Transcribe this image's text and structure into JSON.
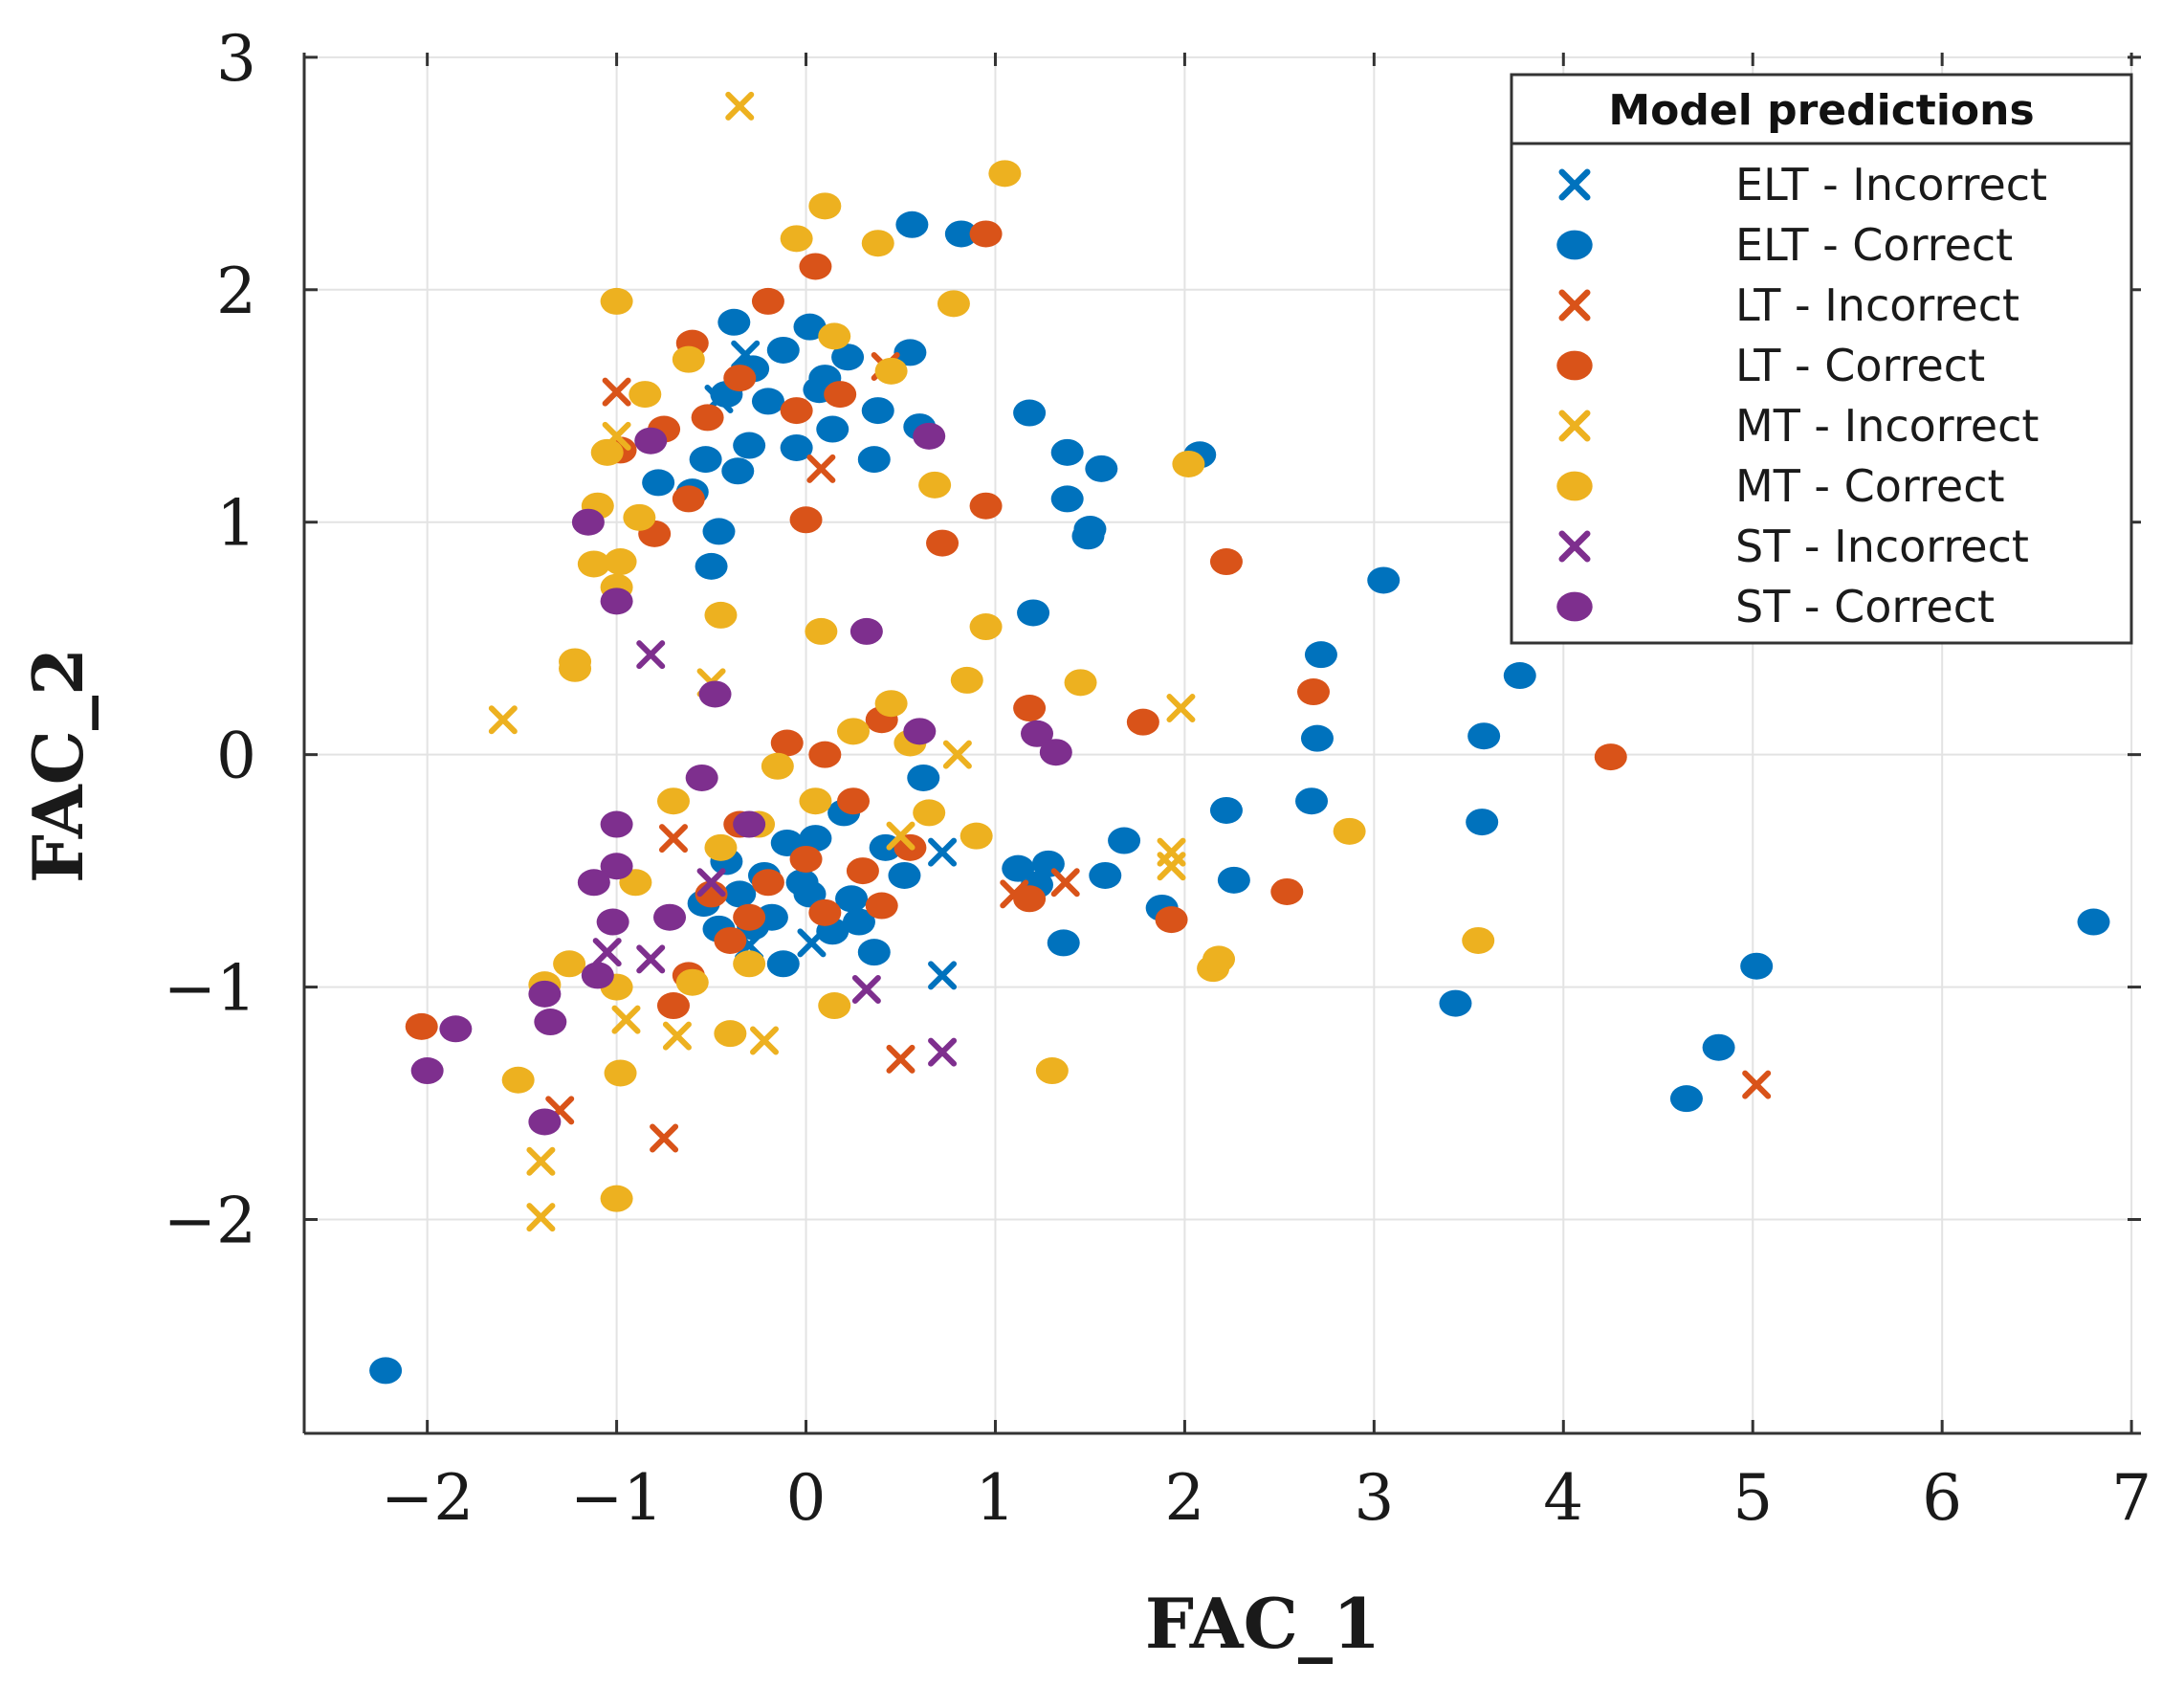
{
  "chart_data": {
    "type": "scatter",
    "xlabel": "FAC_1",
    "ylabel": "FAC_2",
    "xlim": [
      -2.65,
      7.05
    ],
    "ylim": [
      -2.92,
      3.02
    ],
    "xticks": [
      -2,
      -1,
      0,
      1,
      2,
      3,
      4,
      5,
      6,
      7
    ],
    "yticks": [
      -2,
      -1,
      0,
      1,
      2,
      3
    ],
    "xtick_labels": [
      "−2",
      "−1",
      "0",
      "1",
      "2",
      "3",
      "4",
      "5",
      "6",
      "7"
    ],
    "ytick_labels": [
      "−2",
      "−1",
      "0",
      "1",
      "2",
      "3"
    ],
    "grid": true,
    "legend": {
      "title": "Model predictions",
      "position": "top-right"
    },
    "series": [
      {
        "name": "ELT - Incorrect",
        "marker": "x",
        "color": "#0072BD",
        "points": [
          [
            -0.32,
            1.72
          ],
          [
            -0.46,
            1.53
          ],
          [
            0.03,
            -0.81
          ],
          [
            0.72,
            -0.42
          ],
          [
            0.72,
            -0.95
          ],
          [
            -0.3,
            -0.82
          ]
        ]
      },
      {
        "name": "ELT - Correct",
        "marker": "o",
        "color": "#0072BD",
        "points": [
          [
            0.56,
            2.28
          ],
          [
            0.82,
            2.24
          ],
          [
            -0.38,
            1.86
          ],
          [
            0.02,
            1.84
          ],
          [
            -0.12,
            1.74
          ],
          [
            0.22,
            1.71
          ],
          [
            0.55,
            1.73
          ],
          [
            -0.28,
            1.66
          ],
          [
            0.1,
            1.62
          ],
          [
            -0.42,
            1.55
          ],
          [
            -0.2,
            1.52
          ],
          [
            0.38,
            1.48
          ],
          [
            -0.53,
            1.27
          ],
          [
            -0.36,
            1.22
          ],
          [
            -0.6,
            1.13
          ],
          [
            -0.78,
            1.17
          ],
          [
            -0.46,
            0.96
          ],
          [
            -0.5,
            0.81
          ],
          [
            0.14,
            1.4
          ],
          [
            0.6,
            1.41
          ],
          [
            -0.05,
            1.32
          ],
          [
            0.36,
            1.27
          ],
          [
            0.07,
            1.57
          ],
          [
            -0.3,
            1.33
          ],
          [
            1.18,
            1.47
          ],
          [
            1.38,
            1.3
          ],
          [
            1.56,
            1.23
          ],
          [
            1.38,
            1.1
          ],
          [
            1.5,
            0.97
          ],
          [
            1.49,
            0.94
          ],
          [
            2.08,
            1.29
          ],
          [
            1.2,
            0.61
          ],
          [
            3.05,
            0.75
          ],
          [
            2.72,
            0.43
          ],
          [
            3.77,
            0.34
          ],
          [
            2.7,
            0.07
          ],
          [
            3.58,
            0.08
          ],
          [
            0.62,
            -0.1
          ],
          [
            2.22,
            -0.24
          ],
          [
            2.67,
            -0.2
          ],
          [
            1.68,
            -0.37
          ],
          [
            3.57,
            -0.29
          ],
          [
            1.12,
            -0.49
          ],
          [
            1.28,
            -0.47
          ],
          [
            1.58,
            -0.52
          ],
          [
            1.22,
            -0.56
          ],
          [
            2.26,
            -0.54
          ],
          [
            1.88,
            -0.66
          ],
          [
            1.36,
            -0.81
          ],
          [
            0.52,
            -0.52
          ],
          [
            0.2,
            -0.25
          ],
          [
            0.42,
            -0.4
          ],
          [
            -0.1,
            -0.38
          ],
          [
            -0.42,
            -0.46
          ],
          [
            0.05,
            -0.36
          ],
          [
            -0.22,
            -0.52
          ],
          [
            -0.35,
            -0.6
          ],
          [
            0.02,
            -0.6
          ],
          [
            0.24,
            -0.62
          ],
          [
            -0.18,
            -0.7
          ],
          [
            -0.54,
            -0.64
          ],
          [
            -0.28,
            -0.74
          ],
          [
            0.14,
            -0.76
          ],
          [
            -0.12,
            -0.9
          ],
          [
            0.28,
            -0.72
          ],
          [
            0.36,
            -0.85
          ],
          [
            -0.02,
            -0.55
          ],
          [
            -0.46,
            -0.75
          ],
          [
            3.43,
            -1.07
          ],
          [
            5.02,
            -0.91
          ],
          [
            6.8,
            -0.72
          ],
          [
            4.82,
            -1.26
          ],
          [
            4.65,
            -1.48
          ],
          [
            -2.22,
            -2.65
          ]
        ]
      },
      {
        "name": "LT - Incorrect",
        "marker": "x",
        "color": "#D95319",
        "points": [
          [
            0.42,
            1.67
          ],
          [
            0.08,
            1.23
          ],
          [
            -1.0,
            1.56
          ],
          [
            1.37,
            -0.55
          ],
          [
            0.5,
            -1.31
          ],
          [
            5.02,
            -1.42
          ],
          [
            -1.3,
            -1.53
          ],
          [
            -0.75,
            -1.65
          ],
          [
            -0.7,
            -0.36
          ],
          [
            1.1,
            -0.6
          ]
        ]
      },
      {
        "name": "LT - Correct",
        "marker": "o",
        "color": "#D95319",
        "points": [
          [
            0.95,
            2.24
          ],
          [
            0.05,
            2.1
          ],
          [
            -0.2,
            1.95
          ],
          [
            -0.6,
            1.77
          ],
          [
            -0.35,
            1.62
          ],
          [
            0.18,
            1.55
          ],
          [
            -0.05,
            1.48
          ],
          [
            -0.52,
            1.45
          ],
          [
            -0.75,
            1.4
          ],
          [
            -0.98,
            1.31
          ],
          [
            0.0,
            1.01
          ],
          [
            -0.8,
            0.95
          ],
          [
            -0.62,
            1.1
          ],
          [
            0.95,
            1.07
          ],
          [
            0.72,
            0.91
          ],
          [
            2.22,
            0.83
          ],
          [
            2.68,
            0.27
          ],
          [
            1.18,
            0.2
          ],
          [
            1.78,
            0.14
          ],
          [
            4.25,
            -0.01
          ],
          [
            0.4,
            0.15
          ],
          [
            0.1,
            0.0
          ],
          [
            -0.1,
            0.05
          ],
          [
            0.25,
            -0.2
          ],
          [
            -0.35,
            -0.3
          ],
          [
            0.55,
            -0.4
          ],
          [
            0.0,
            -0.45
          ],
          [
            -0.2,
            -0.55
          ],
          [
            0.3,
            -0.5
          ],
          [
            -0.5,
            -0.6
          ],
          [
            0.1,
            -0.68
          ],
          [
            -0.4,
            -0.8
          ],
          [
            -0.62,
            -0.95
          ],
          [
            -0.7,
            -1.08
          ],
          [
            1.18,
            -0.62
          ],
          [
            1.93,
            -0.71
          ],
          [
            2.54,
            -0.59
          ],
          [
            -2.03,
            -1.17
          ],
          [
            -0.3,
            -0.7
          ],
          [
            0.4,
            -0.65
          ]
        ]
      },
      {
        "name": "MT - Incorrect",
        "marker": "x",
        "color": "#EDB120",
        "points": [
          [
            -0.35,
            2.79
          ],
          [
            -1.0,
            1.37
          ],
          [
            -0.5,
            0.31
          ],
          [
            -1.6,
            0.15
          ],
          [
            1.98,
            0.2
          ],
          [
            1.93,
            -0.42
          ],
          [
            1.93,
            -0.48
          ],
          [
            -0.95,
            -1.14
          ],
          [
            -0.68,
            -1.21
          ],
          [
            -0.22,
            -1.23
          ],
          [
            -1.4,
            -1.75
          ],
          [
            -1.4,
            -1.99
          ],
          [
            0.5,
            -0.35
          ],
          [
            0.8,
            0.0
          ]
        ]
      },
      {
        "name": "MT - Correct",
        "marker": "o",
        "color": "#EDB120",
        "points": [
          [
            1.05,
            2.5
          ],
          [
            0.1,
            2.36
          ],
          [
            -0.05,
            2.22
          ],
          [
            0.38,
            2.2
          ],
          [
            0.78,
            1.94
          ],
          [
            -1.0,
            1.95
          ],
          [
            -0.62,
            1.7
          ],
          [
            -0.85,
            1.55
          ],
          [
            0.15,
            1.8
          ],
          [
            0.45,
            1.65
          ],
          [
            -1.05,
            1.3
          ],
          [
            -0.88,
            1.02
          ],
          [
            -1.1,
            1.07
          ],
          [
            -1.12,
            0.82
          ],
          [
            -0.98,
            0.83
          ],
          [
            -1.0,
            0.72
          ],
          [
            -0.45,
            0.6
          ],
          [
            0.08,
            0.53
          ],
          [
            0.68,
            1.16
          ],
          [
            0.95,
            0.55
          ],
          [
            2.02,
            1.25
          ],
          [
            -1.22,
            0.4
          ],
          [
            -1.22,
            0.37
          ],
          [
            0.45,
            0.22
          ],
          [
            0.85,
            0.32
          ],
          [
            1.45,
            0.31
          ],
          [
            0.55,
            0.05
          ],
          [
            -0.7,
            -0.2
          ],
          [
            -0.45,
            -0.4
          ],
          [
            0.65,
            -0.25
          ],
          [
            0.9,
            -0.35
          ],
          [
            -0.9,
            -0.55
          ],
          [
            -0.3,
            -0.9
          ],
          [
            -1.25,
            -0.9
          ],
          [
            -1.38,
            -0.99
          ],
          [
            -1.0,
            -1.0
          ],
          [
            -0.6,
            -0.98
          ],
          [
            -0.4,
            -1.2
          ],
          [
            0.15,
            -1.08
          ],
          [
            -0.98,
            -1.37
          ],
          [
            -1.52,
            -1.4
          ],
          [
            -1.0,
            -1.91
          ],
          [
            1.3,
            -1.36
          ],
          [
            2.15,
            -0.92
          ],
          [
            2.18,
            -0.88
          ],
          [
            2.87,
            -0.33
          ],
          [
            3.55,
            -0.8
          ],
          [
            0.05,
            -0.2
          ],
          [
            -0.15,
            -0.05
          ],
          [
            0.25,
            0.1
          ],
          [
            -0.25,
            -0.3
          ]
        ]
      },
      {
        "name": "ST - Incorrect",
        "marker": "x",
        "color": "#7E2F8E",
        "points": [
          [
            -0.82,
            0.43
          ],
          [
            -1.05,
            -0.85
          ],
          [
            -0.82,
            -0.88
          ],
          [
            0.32,
            -1.01
          ],
          [
            0.72,
            -1.28
          ],
          [
            -0.5,
            -0.55
          ]
        ]
      },
      {
        "name": "ST - Correct",
        "marker": "o",
        "color": "#7E2F8E",
        "points": [
          [
            -1.15,
            1.0
          ],
          [
            -0.82,
            1.35
          ],
          [
            0.65,
            1.37
          ],
          [
            -1.0,
            0.66
          ],
          [
            0.32,
            0.53
          ],
          [
            -0.48,
            0.26
          ],
          [
            1.22,
            0.09
          ],
          [
            1.32,
            0.01
          ],
          [
            -0.55,
            -0.1
          ],
          [
            -1.0,
            -0.3
          ],
          [
            -1.0,
            -0.48
          ],
          [
            -1.12,
            -0.55
          ],
          [
            -0.72,
            -0.7
          ],
          [
            -1.02,
            -0.72
          ],
          [
            -1.1,
            -0.95
          ],
          [
            -1.38,
            -1.03
          ],
          [
            -1.35,
            -1.15
          ],
          [
            -1.85,
            -1.18
          ],
          [
            -2.0,
            -1.36
          ],
          [
            -1.38,
            -1.58
          ],
          [
            -0.3,
            -0.3
          ],
          [
            0.6,
            0.1
          ]
        ]
      }
    ]
  }
}
